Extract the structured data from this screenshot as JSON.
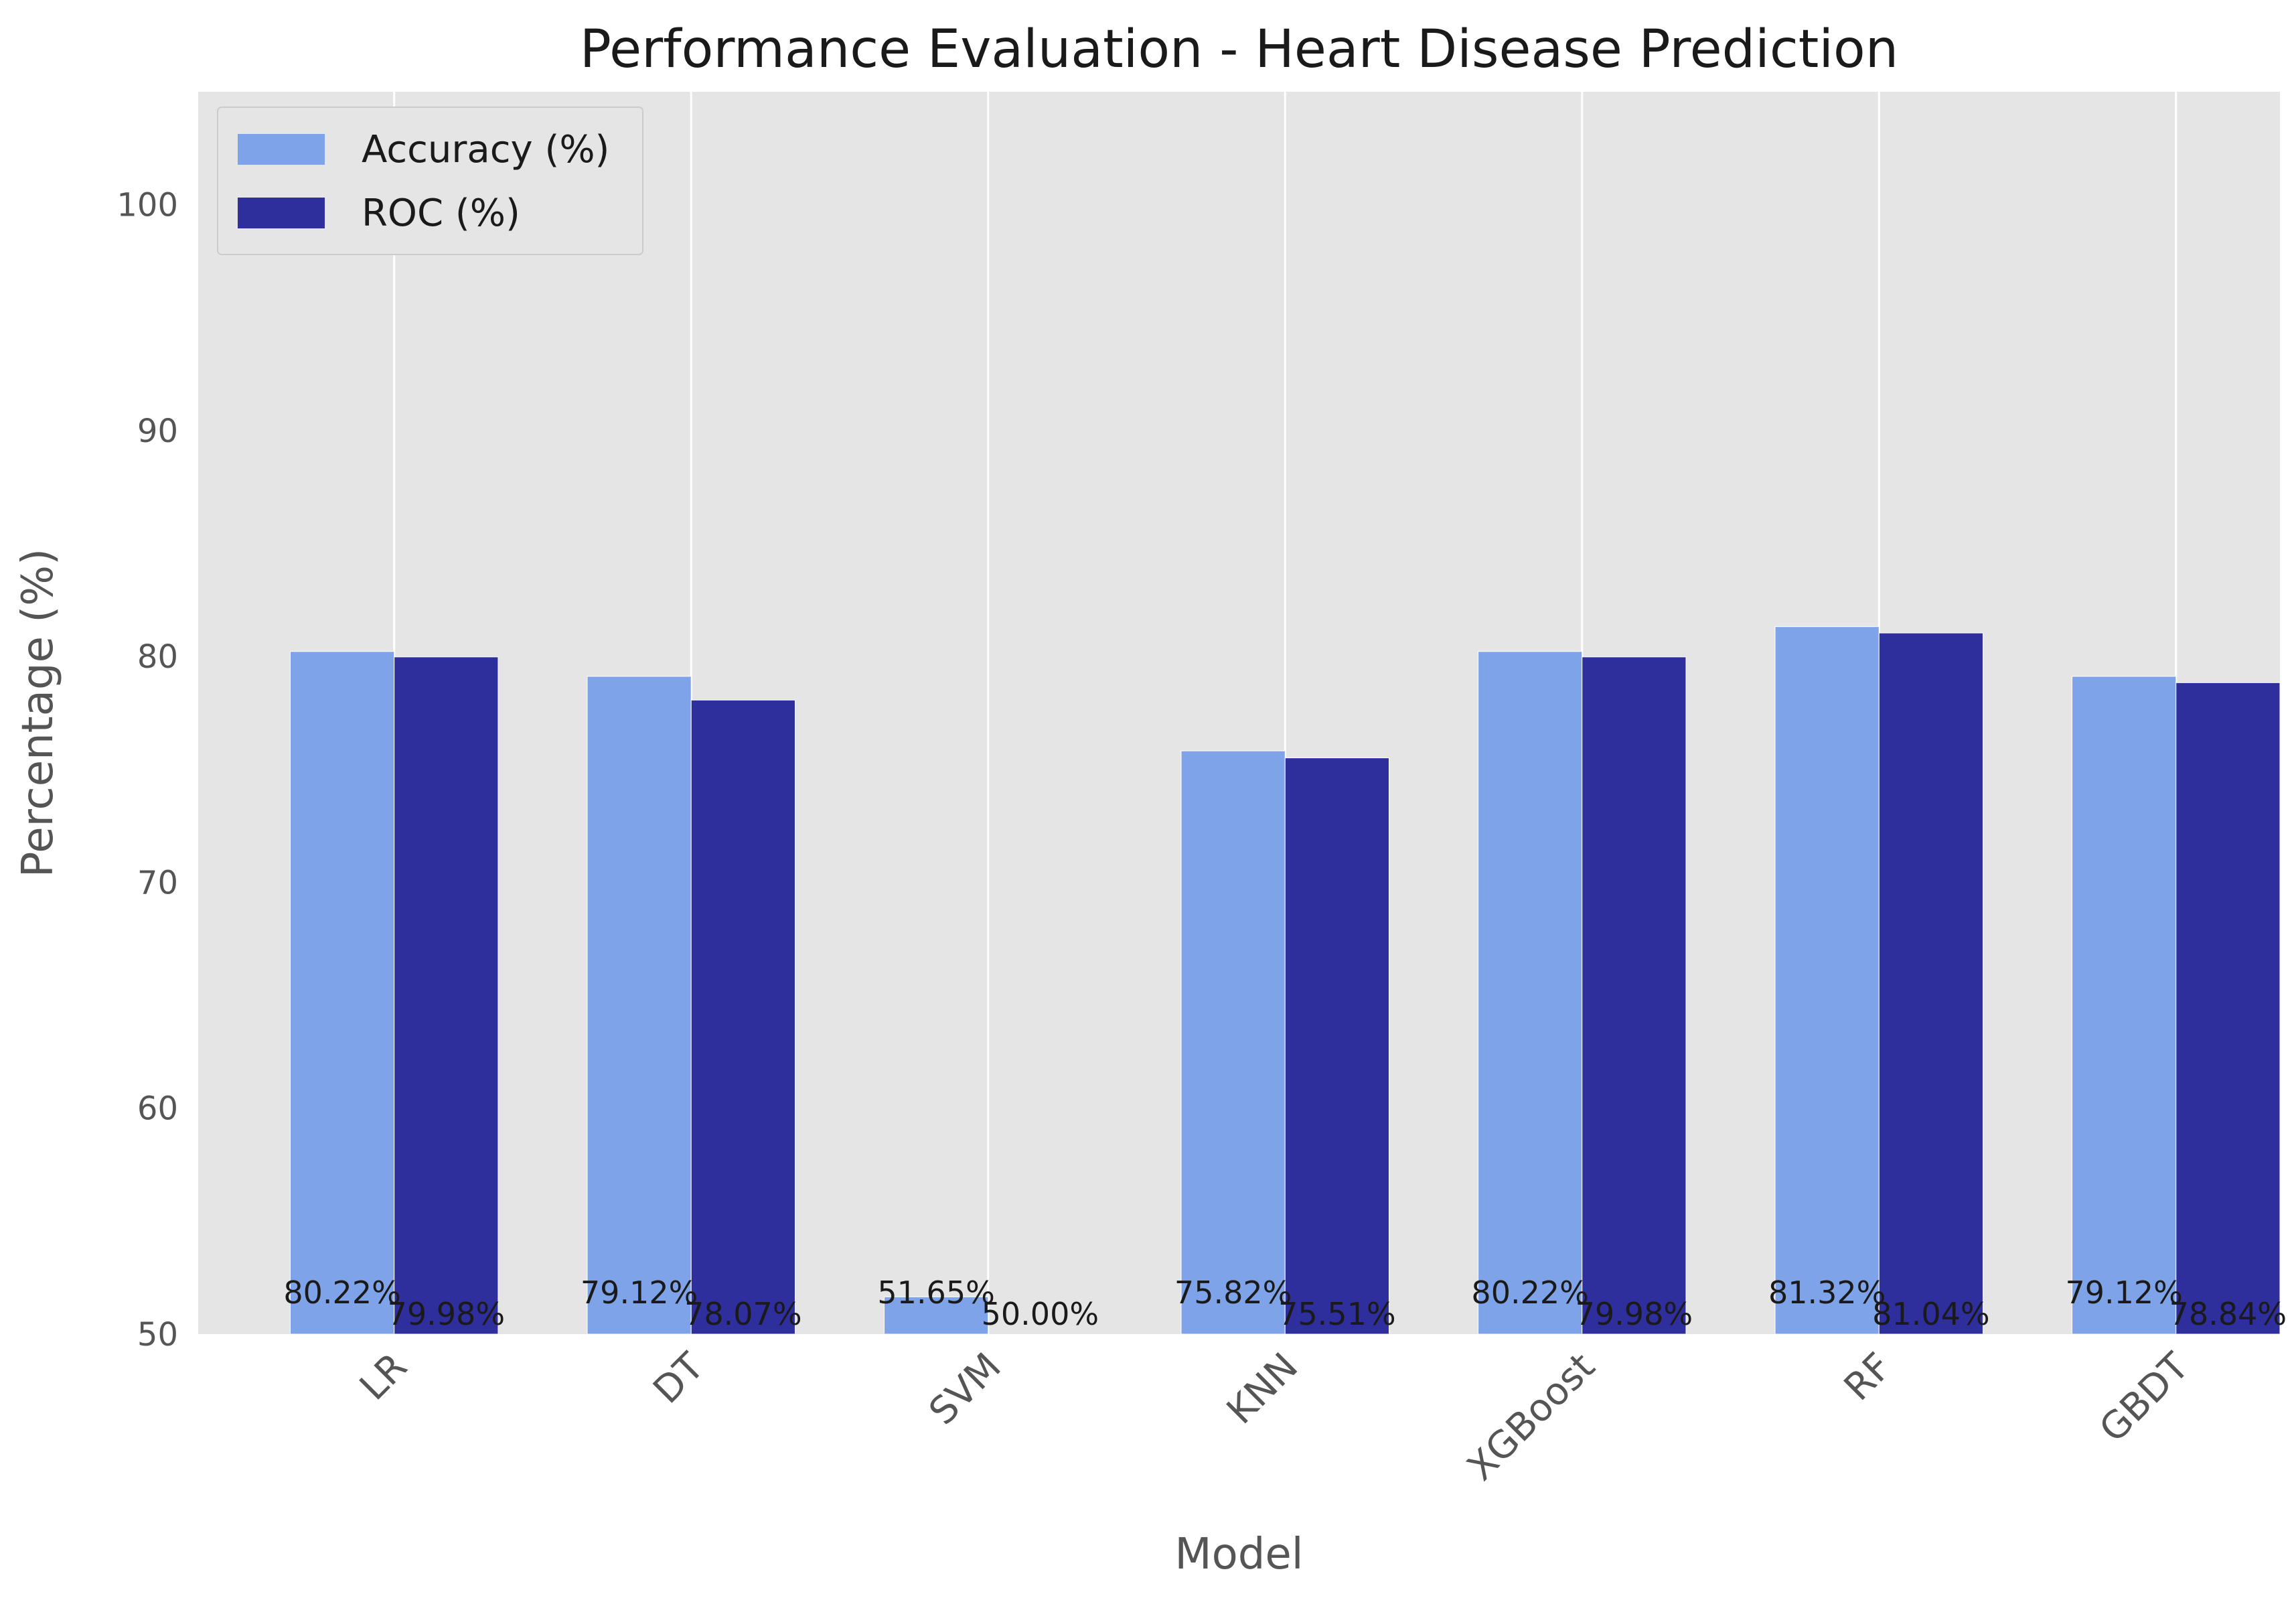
{
  "chart_data": {
    "type": "bar",
    "title": "Performance Evaluation - Heart Disease Prediction",
    "xlabel": "Model",
    "ylabel": "Percentage (%)",
    "ylim": [
      50,
      105
    ],
    "yticks": [
      50,
      60,
      70,
      80,
      90,
      100
    ],
    "categories": [
      "LR",
      "DT",
      "SVM",
      "KNN",
      "XGBoost",
      "RF",
      "GBDT"
    ],
    "series": [
      {
        "name": "Accuracy (%)",
        "color": "#7fa3e8",
        "values": [
          80.22,
          79.12,
          51.65,
          75.82,
          80.22,
          81.32,
          79.12
        ],
        "labels": [
          "80.22%",
          "79.12%",
          "51.65%",
          "75.82%",
          "80.22%",
          "81.32%",
          "79.12%"
        ]
      },
      {
        "name": "ROC (%)",
        "color": "#2e2e9c",
        "values": [
          79.98,
          78.07,
          50.0,
          75.51,
          79.98,
          81.04,
          78.84
        ],
        "labels": [
          "79.98%",
          "78.07%",
          "50.00%",
          "75.51%",
          "79.98%",
          "81.04%",
          "78.84%"
        ]
      }
    ],
    "legend_position": "top-left",
    "grid": "vertical",
    "background": "#e5e5e5"
  }
}
